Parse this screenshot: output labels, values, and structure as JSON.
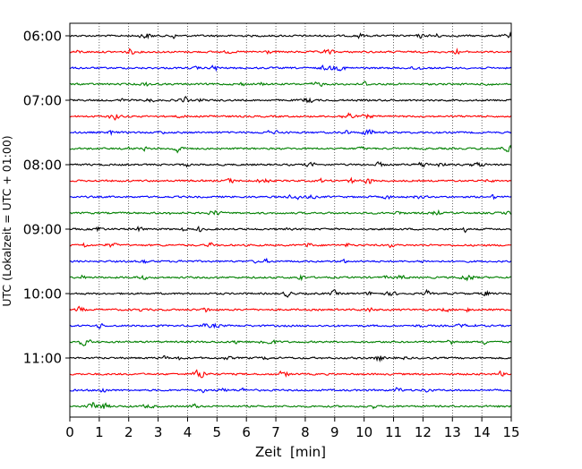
{
  "chart_data": {
    "type": "line",
    "subtype": "helicorder",
    "title": "",
    "xlabel": "Zeit  [min]",
    "ylabel": "UTC (Lokalzeit = UTC + 01:00)",
    "xlim": [
      0,
      15
    ],
    "x_ticks": [
      0,
      1,
      2,
      3,
      4,
      5,
      6,
      7,
      8,
      9,
      10,
      11,
      12,
      13,
      14,
      15
    ],
    "x_tick_labels": [
      "0",
      "1",
      "2",
      "3",
      "4",
      "5",
      "6",
      "7",
      "8",
      "9",
      "10",
      "11",
      "12",
      "13",
      "14",
      "15"
    ],
    "x_grid": "dotted vertical lines at each minute",
    "y_tick_labels": [
      "06:00",
      "07:00",
      "08:00",
      "09:00",
      "10:00",
      "11:00"
    ],
    "trace_interval_min": 15,
    "trace_count": 24,
    "trace_colors": [
      "#000000",
      "#ff0000",
      "#0000ff",
      "#008000"
    ],
    "traces": [
      {
        "start": "06:00",
        "color": "#000000"
      },
      {
        "start": "06:15",
        "color": "#ff0000"
      },
      {
        "start": "06:30",
        "color": "#0000ff"
      },
      {
        "start": "06:45",
        "color": "#008000"
      },
      {
        "start": "07:00",
        "color": "#000000"
      },
      {
        "start": "07:15",
        "color": "#ff0000"
      },
      {
        "start": "07:30",
        "color": "#0000ff"
      },
      {
        "start": "07:45",
        "color": "#008000"
      },
      {
        "start": "08:00",
        "color": "#000000"
      },
      {
        "start": "08:15",
        "color": "#ff0000"
      },
      {
        "start": "08:30",
        "color": "#0000ff"
      },
      {
        "start": "08:45",
        "color": "#008000"
      },
      {
        "start": "09:00",
        "color": "#000000"
      },
      {
        "start": "09:15",
        "color": "#ff0000"
      },
      {
        "start": "09:30",
        "color": "#0000ff"
      },
      {
        "start": "09:45",
        "color": "#008000"
      },
      {
        "start": "10:00",
        "color": "#000000"
      },
      {
        "start": "10:15",
        "color": "#ff0000"
      },
      {
        "start": "10:30",
        "color": "#0000ff"
      },
      {
        "start": "10:45",
        "color": "#008000"
      },
      {
        "start": "11:00",
        "color": "#000000"
      },
      {
        "start": "11:15",
        "color": "#ff0000"
      },
      {
        "start": "11:30",
        "color": "#0000ff"
      },
      {
        "start": "11:45",
        "color": "#008000"
      }
    ]
  }
}
